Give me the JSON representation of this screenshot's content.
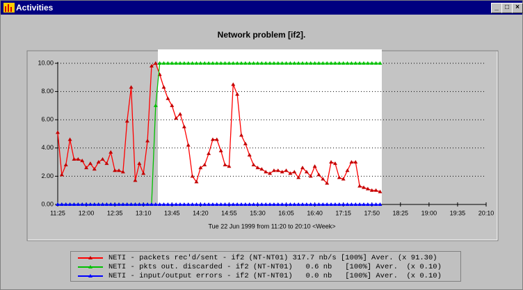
{
  "window": {
    "title": "Activities"
  },
  "chart_data": {
    "type": "line",
    "title": "Network problem [if2].",
    "x_label": "Tue 22 Jun 1999 from 11:20 to 20:10 <Week>",
    "x": [
      "11:25",
      "11:30",
      "11:35",
      "11:40",
      "11:45",
      "11:50",
      "11:55",
      "12:00",
      "12:05",
      "12:10",
      "12:15",
      "12:20",
      "12:25",
      "12:30",
      "12:35",
      "12:40",
      "12:45",
      "12:50",
      "12:55",
      "13:00",
      "13:05",
      "13:10",
      "13:15",
      "13:20",
      "13:25",
      "13:30",
      "13:35",
      "13:40",
      "13:45",
      "13:50",
      "13:55",
      "14:00",
      "14:05",
      "14:10",
      "14:15",
      "14:20",
      "14:25",
      "14:30",
      "14:35",
      "14:40",
      "14:45",
      "14:50",
      "14:55",
      "15:00",
      "15:05",
      "15:10",
      "15:15",
      "15:20",
      "15:25",
      "15:30",
      "15:35",
      "15:40",
      "15:45",
      "15:50",
      "15:55",
      "16:00",
      "16:05",
      "16:10",
      "16:15",
      "16:20",
      "16:25",
      "16:30",
      "16:35",
      "16:40",
      "16:45",
      "16:50",
      "16:55",
      "17:00",
      "17:05",
      "17:10",
      "17:15",
      "17:20",
      "17:25",
      "17:30",
      "17:35",
      "17:40",
      "17:45",
      "17:50",
      "17:55",
      "18:00"
    ],
    "series": [
      {
        "name": "NETI - packets rec'd/sent - if2 (NT-NT01) 317.7 nb/s [100%] Aver. (x 91.30)",
        "color": "#ff0000",
        "marker_color": "#c00000",
        "values": [
          5.1,
          2.1,
          2.8,
          4.6,
          3.2,
          3.2,
          3.1,
          2.6,
          2.9,
          2.5,
          3.0,
          3.2,
          2.9,
          3.7,
          2.4,
          2.4,
          2.3,
          5.9,
          8.3,
          1.7,
          2.9,
          2.2,
          4.5,
          9.8,
          10.0,
          9.2,
          8.3,
          7.5,
          7.0,
          6.1,
          6.4,
          5.5,
          4.2,
          2.0,
          1.6,
          2.6,
          2.8,
          3.6,
          4.6,
          4.6,
          3.8,
          2.8,
          2.7,
          8.5,
          7.8,
          4.9,
          4.3,
          3.5,
          2.8,
          2.6,
          2.5,
          2.3,
          2.2,
          2.4,
          2.4,
          2.3,
          2.4,
          2.2,
          2.3,
          1.9,
          2.6,
          2.3,
          2.0,
          2.7,
          2.1,
          1.8,
          1.5,
          3.0,
          2.9,
          1.9,
          1.8,
          2.4,
          3.0,
          3.0,
          1.3,
          1.2,
          1.1,
          1.0,
          1.0,
          0.9
        ]
      },
      {
        "name": "NETI - pkts out. discarded - if2 (NT-NT01)   0.6 nb   [100%] Aver.  (x 0.10)",
        "color": "#00c000",
        "marker_color": "#00c000",
        "values": [
          0,
          0,
          0,
          0,
          0,
          0,
          0,
          0,
          0,
          0,
          0,
          0,
          0,
          0,
          0,
          0,
          0,
          0,
          0,
          0,
          0,
          0,
          0,
          0,
          7.0,
          10,
          10,
          10,
          10,
          10,
          10,
          10,
          10,
          10,
          10,
          10,
          10,
          10,
          10,
          10,
          10,
          10,
          10,
          10,
          10,
          10,
          10,
          10,
          10,
          10,
          10,
          10,
          10,
          10,
          10,
          10,
          10,
          10,
          10,
          10,
          10,
          10,
          10,
          10,
          10,
          10,
          10,
          10,
          10,
          10,
          10,
          10,
          10,
          10,
          10,
          10,
          10,
          10,
          10,
          10
        ]
      },
      {
        "name": "NETI - input/output errors - if2 (NT-NT01)   0.0 nb   [100%] Aver.  (x 0.10)",
        "color": "#0000ff",
        "marker_color": "#0000ff",
        "values": [
          0,
          0,
          0,
          0,
          0,
          0,
          0,
          0,
          0,
          0,
          0,
          0,
          0,
          0,
          0,
          0,
          0,
          0,
          0,
          0,
          0,
          0,
          0,
          0,
          0,
          0,
          0,
          0,
          0,
          0,
          0,
          0,
          0,
          0,
          0,
          0,
          0,
          0,
          0,
          0,
          0,
          0,
          0,
          0,
          0,
          0,
          0,
          0,
          0,
          0,
          0,
          0,
          0,
          0,
          0,
          0,
          0,
          0,
          0,
          0,
          0,
          0,
          0,
          0,
          0,
          0,
          0,
          0,
          0,
          0,
          0,
          0,
          0,
          0,
          0,
          0,
          0,
          0,
          0,
          0
        ]
      }
    ],
    "xlim": [
      "11:25",
      "20:10"
    ],
    "xticks": [
      "11:25",
      "12:00",
      "12:35",
      "13:10",
      "13:45",
      "14:20",
      "14:55",
      "15:30",
      "16:05",
      "16:40",
      "17:15",
      "17:50",
      "18:25",
      "19:00",
      "19:35",
      "20:10"
    ],
    "ylim": [
      0,
      10
    ],
    "yticks": [
      {
        "value": 0,
        "label": "0.00"
      },
      {
        "value": 2,
        "label": "2.00"
      },
      {
        "value": 4,
        "label": "4.00"
      },
      {
        "value": 6,
        "label": "6.00"
      },
      {
        "value": 8,
        "label": "8.00"
      },
      {
        "value": 10,
        "label": "10.00"
      }
    ],
    "grid": true
  }
}
